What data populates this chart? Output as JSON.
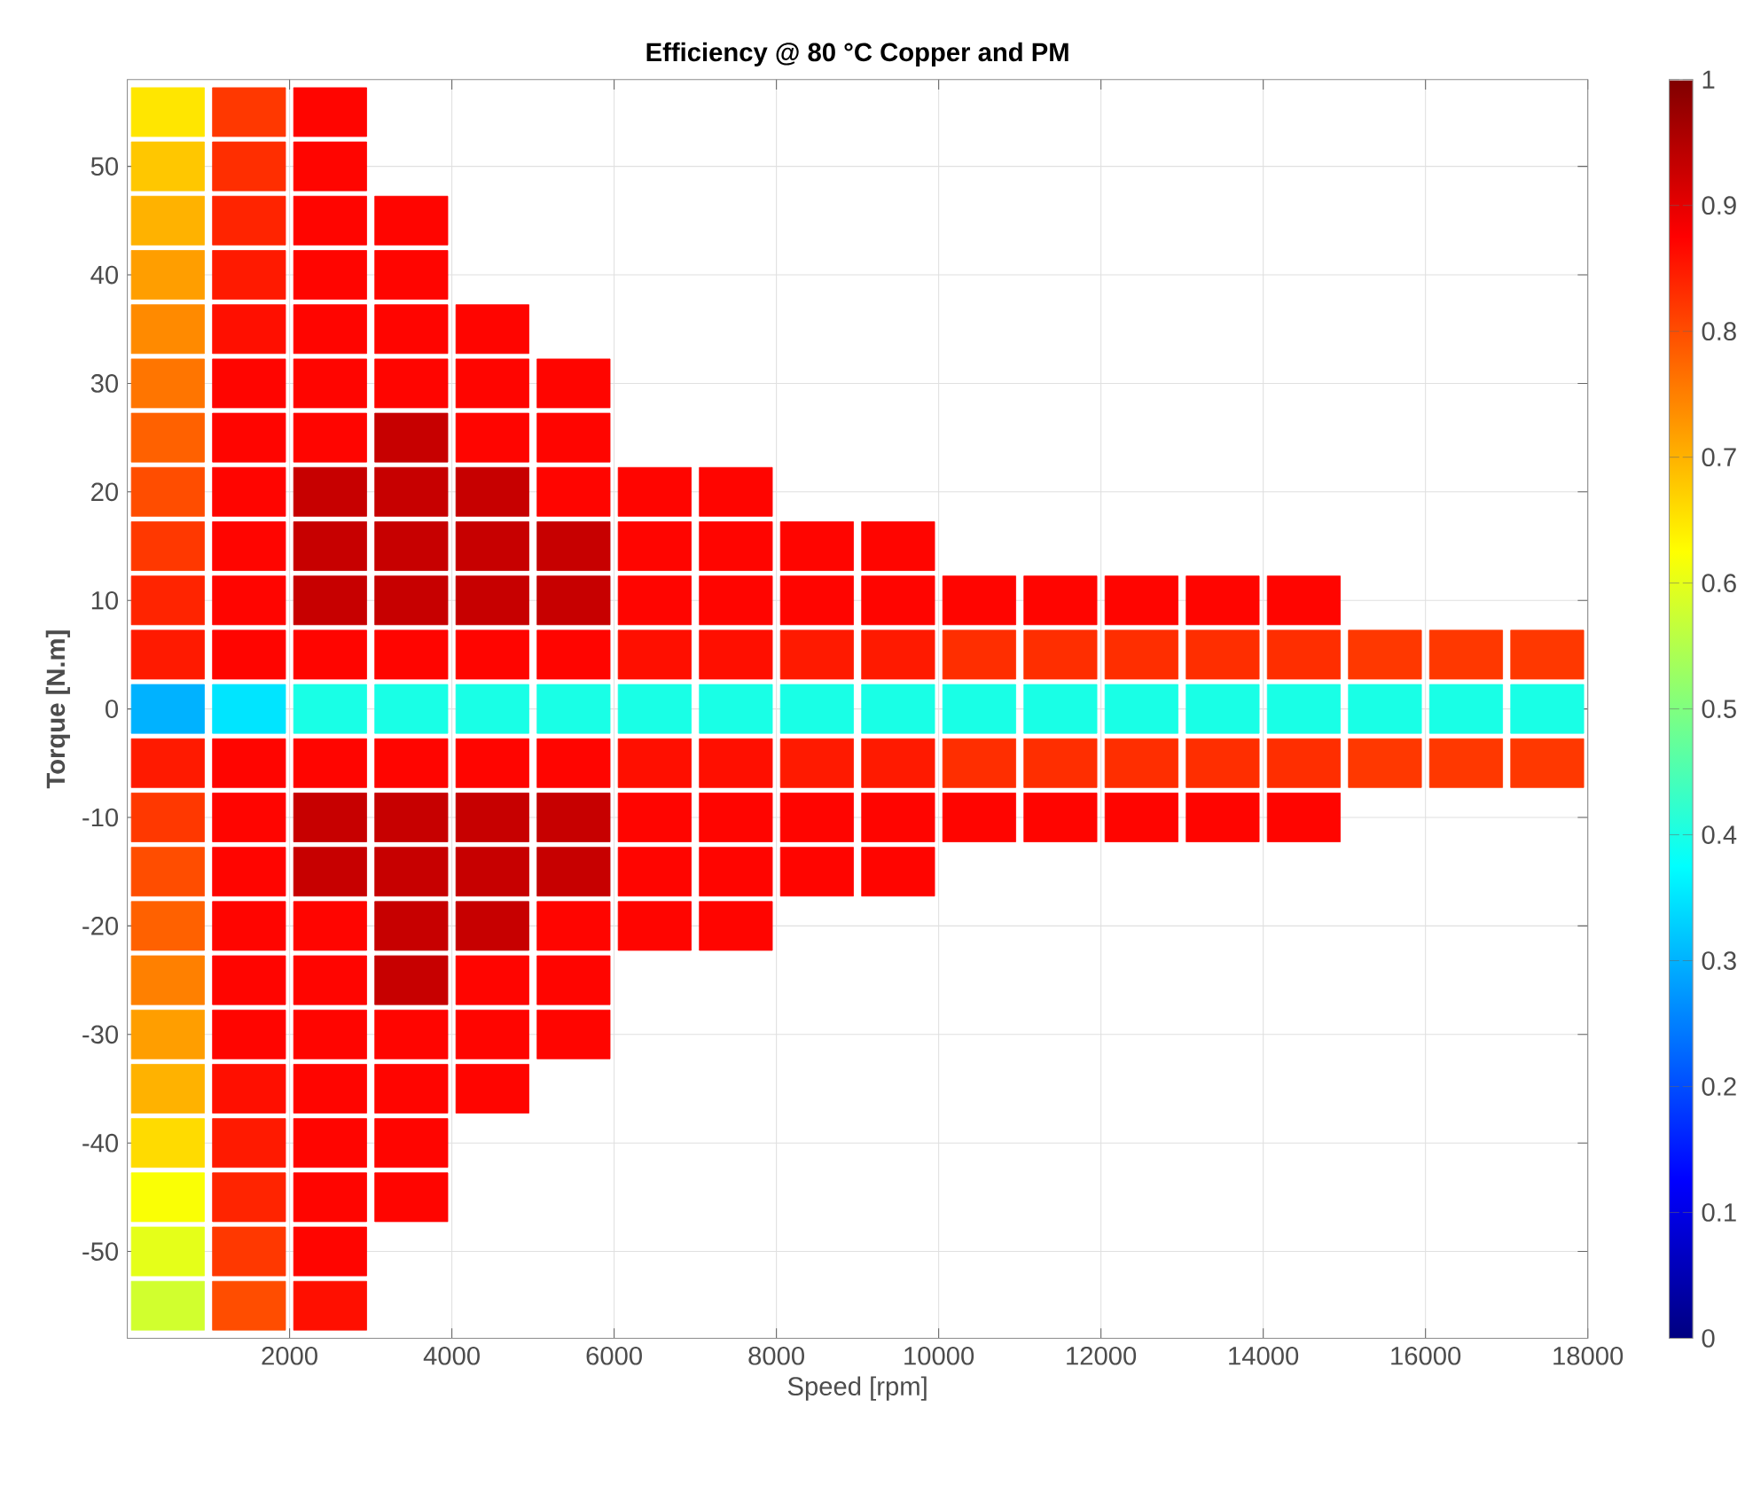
{
  "chart_data": {
    "type": "scatter",
    "title": "Efficiency @ 80 °C Copper and PM",
    "xlabel": "Speed [rpm]",
    "ylabel": "Torque [N.m]",
    "xlim": [
      0,
      18000
    ],
    "ylim": [
      -58,
      58
    ],
    "xticks": [
      2000,
      4000,
      6000,
      8000,
      10000,
      12000,
      14000,
      16000,
      18000
    ],
    "yticks": [
      -50,
      -40,
      -30,
      -20,
      -10,
      0,
      10,
      20,
      30,
      40,
      50
    ],
    "clim": [
      0,
      1
    ],
    "cticks": [
      0,
      0.1,
      0.2,
      0.3,
      0.4,
      0.5,
      0.6,
      0.7,
      0.8,
      0.9,
      1
    ],
    "grid": true,
    "marker": "square",
    "series": [
      {
        "color": "#00b3ff",
        "x": [
          500
        ],
        "values": [
          0
        ],
        "cvalues": [
          0.3
        ]
      },
      {
        "color": "#00e6ff",
        "x": [
          1500
        ],
        "values": [
          0
        ],
        "cvalues": [
          0.35
        ]
      },
      {
        "color": "#1affe6",
        "x": [
          2500,
          3500,
          4500,
          5500,
          6500,
          7500,
          8500,
          9500,
          10500,
          11500,
          12500,
          13500,
          14500,
          15500,
          16500,
          17500
        ],
        "values": [
          0,
          0,
          0,
          0,
          0,
          0,
          0,
          0,
          0,
          0,
          0,
          0,
          0,
          0,
          0,
          0
        ],
        "cvalues": [
          0.4,
          0.4,
          0.4,
          0.4,
          0.4,
          0.4,
          0.4,
          0.4,
          0.4,
          0.4,
          0.4,
          0.4,
          0.4,
          0.4,
          0.4,
          0.4
        ]
      },
      {
        "color": "#d1ff2e",
        "x": [
          500
        ],
        "values": [
          -55
        ],
        "cvalues": [
          0.58
        ]
      },
      {
        "color": "#e6ff1a",
        "x": [
          500
        ],
        "values": [
          -50
        ],
        "cvalues": [
          0.6
        ]
      },
      {
        "color": "#faff05",
        "x": [
          500
        ],
        "values": [
          -45
        ],
        "cvalues": [
          0.62
        ]
      },
      {
        "color": "#ffe600",
        "x": [
          500
        ],
        "values": [
          55
        ],
        "cvalues": [
          0.65
        ]
      },
      {
        "color": "#ffdb00",
        "x": [
          500
        ],
        "values": [
          -40
        ],
        "cvalues": [
          0.66
        ]
      },
      {
        "color": "#ffc700",
        "x": [
          500
        ],
        "values": [
          50
        ],
        "cvalues": [
          0.68
        ]
      },
      {
        "color": "#ffb300",
        "x": [
          500,
          500
        ],
        "values": [
          45,
          -35
        ],
        "cvalues": [
          0.7,
          0.7
        ]
      },
      {
        "color": "#ff9e00",
        "x": [
          500,
          500
        ],
        "values": [
          40,
          -30
        ],
        "cvalues": [
          0.72,
          0.72
        ]
      },
      {
        "color": "#ff8a00",
        "x": [
          500
        ],
        "values": [
          35
        ],
        "cvalues": [
          0.74
        ]
      },
      {
        "color": "#ff8000",
        "x": [
          500
        ],
        "values": [
          -25
        ],
        "cvalues": [
          0.75
        ]
      },
      {
        "color": "#ff7500",
        "x": [
          500
        ],
        "values": [
          30
        ],
        "cvalues": [
          0.76
        ]
      },
      {
        "color": "#ff6100",
        "x": [
          500,
          500
        ],
        "values": [
          25,
          -20
        ],
        "cvalues": [
          0.78,
          0.78
        ]
      },
      {
        "color": "#ff4d00",
        "x": [
          500,
          500,
          1500
        ],
        "values": [
          20,
          -15,
          -55
        ],
        "cvalues": [
          0.8,
          0.8,
          0.8
        ]
      },
      {
        "color": "#ff3800",
        "x": [
          500,
          500,
          1500,
          1500,
          15500,
          15500,
          16500,
          16500,
          17500,
          17500
        ],
        "values": [
          15,
          -10,
          55,
          -50,
          5,
          -5,
          5,
          -5,
          5,
          -5
        ],
        "cvalues": [
          0.82,
          0.82,
          0.82,
          0.82,
          0.82,
          0.82,
          0.82,
          0.82,
          0.82,
          0.82
        ]
      },
      {
        "color": "#ff2e00",
        "x": [
          1500,
          10500,
          10500,
          11500,
          11500,
          12500,
          12500,
          13500,
          13500,
          14500,
          14500
        ],
        "values": [
          50,
          5,
          -5,
          5,
          -5,
          5,
          -5,
          5,
          -5,
          5,
          -5
        ],
        "cvalues": [
          0.83,
          0.83,
          0.83,
          0.83,
          0.83,
          0.83,
          0.83,
          0.83,
          0.83,
          0.83,
          0.83
        ]
      },
      {
        "color": "#ff2400",
        "x": [
          500,
          1500,
          1500
        ],
        "values": [
          10,
          45,
          -45
        ],
        "cvalues": [
          0.84,
          0.84,
          0.84
        ]
      },
      {
        "color": "#ff1a00",
        "x": [
          500,
          500,
          1500,
          1500,
          8500,
          8500,
          9500,
          9500
        ],
        "values": [
          5,
          -5,
          40,
          -40,
          5,
          -5,
          5,
          -5
        ],
        "cvalues": [
          0.85,
          0.85,
          0.85,
          0.85,
          0.85,
          0.85,
          0.85,
          0.85
        ]
      },
      {
        "color": "#ff0f00",
        "x": [
          1500,
          1500,
          2500,
          6500,
          6500,
          7500,
          7500
        ],
        "values": [
          35,
          -35,
          -55,
          5,
          -5,
          5,
          -5
        ],
        "cvalues": [
          0.86,
          0.86,
          0.86,
          0.86,
          0.86,
          0.86,
          0.86
        ]
      },
      {
        "color": "#ff0500",
        "x": [
          1500,
          1500,
          1500,
          1500,
          1500,
          1500,
          1500,
          1500,
          1500,
          1500,
          1500,
          1500,
          2500,
          2500,
          2500,
          2500,
          2500,
          2500,
          2500,
          2500,
          2500,
          2500,
          2500,
          2500,
          2500,
          2500,
          2500,
          2500,
          3500,
          3500,
          3500,
          3500,
          3500,
          3500,
          3500,
          3500,
          3500,
          3500,
          4500,
          4500,
          4500,
          4500,
          4500,
          4500,
          4500,
          4500,
          5500,
          5500,
          5500,
          5500,
          5500,
          5500,
          5500,
          5500,
          6500,
          6500,
          6500,
          6500,
          6500,
          6500,
          7500,
          7500,
          7500,
          7500,
          7500,
          7500,
          8500,
          8500,
          8500,
          8500,
          9500,
          9500,
          9500,
          9500,
          10500,
          10500,
          11500,
          11500,
          12500,
          12500,
          13500,
          13500,
          14500,
          14500
        ],
        "values": [
          30,
          25,
          20,
          15,
          10,
          5,
          -5,
          -10,
          -15,
          -20,
          -25,
          -30,
          55,
          50,
          45,
          40,
          35,
          30,
          25,
          5,
          -5,
          -20,
          -25,
          -30,
          -35,
          -40,
          -45,
          -50,
          45,
          40,
          35,
          30,
          5,
          -5,
          -30,
          -35,
          -40,
          -45,
          35,
          30,
          25,
          5,
          -5,
          -25,
          -30,
          -35,
          30,
          25,
          20,
          5,
          -5,
          -20,
          -25,
          -30,
          20,
          15,
          10,
          -10,
          -15,
          -20,
          20,
          15,
          10,
          -10,
          -15,
          -20,
          15,
          10,
          -10,
          -15,
          15,
          10,
          -10,
          -15,
          10,
          -10,
          10,
          -10,
          10,
          -10,
          10,
          -10,
          10,
          -10
        ],
        "cvalues": [
          0.87,
          0.87,
          0.87,
          0.87,
          0.87,
          0.87,
          0.87,
          0.87,
          0.87,
          0.87,
          0.87,
          0.87,
          0.87,
          0.87,
          0.87,
          0.87,
          0.87,
          0.87,
          0.87,
          0.87,
          0.87,
          0.87,
          0.87,
          0.87,
          0.87,
          0.87,
          0.87,
          0.87,
          0.87,
          0.87,
          0.87,
          0.87,
          0.87,
          0.87,
          0.87,
          0.87,
          0.87,
          0.87,
          0.87,
          0.87,
          0.87,
          0.87,
          0.87,
          0.87,
          0.87,
          0.87,
          0.87,
          0.87,
          0.87,
          0.87,
          0.87,
          0.87,
          0.87,
          0.87,
          0.87,
          0.87,
          0.87,
          0.87,
          0.87,
          0.87,
          0.87,
          0.87,
          0.87,
          0.87,
          0.87,
          0.87,
          0.87,
          0.87,
          0.87,
          0.87,
          0.87,
          0.87,
          0.87,
          0.87,
          0.87,
          0.87,
          0.87,
          0.87,
          0.87,
          0.87,
          0.87,
          0.87,
          0.87,
          0.87
        ]
      },
      {
        "color": "#c70000",
        "x": [
          2500,
          2500,
          2500,
          2500,
          2500,
          3500,
          3500,
          3500,
          3500,
          3500,
          3500,
          3500,
          3500,
          4500,
          4500,
          4500,
          4500,
          4500,
          4500,
          5500,
          5500,
          5500,
          5500
        ],
        "values": [
          20,
          15,
          10,
          -10,
          -15,
          25,
          20,
          15,
          10,
          -10,
          -15,
          -20,
          -25,
          20,
          15,
          10,
          -10,
          -15,
          -20,
          15,
          10,
          -10,
          -15
        ],
        "cvalues": [
          0.93,
          0.93,
          0.93,
          0.93,
          0.93,
          0.93,
          0.93,
          0.93,
          0.93,
          0.93,
          0.93,
          0.93,
          0.93,
          0.93,
          0.93,
          0.93,
          0.93,
          0.93,
          0.93,
          0.93,
          0.93,
          0.93,
          0.93
        ]
      }
    ]
  }
}
